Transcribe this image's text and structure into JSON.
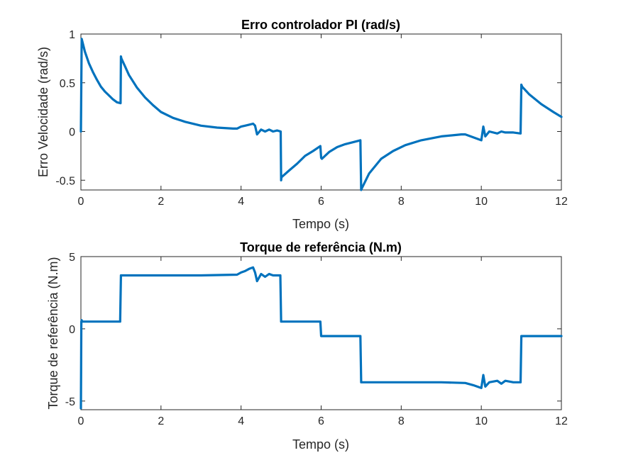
{
  "chart_data": [
    {
      "type": "line",
      "title": "Erro controlador PI (rad/s)",
      "xlabel": "Tempo (s)",
      "ylabel": "Erro Velocidade (rad/s)",
      "xlim": [
        0,
        12
      ],
      "ylim": [
        -0.6,
        1
      ],
      "xticks": [
        0,
        2,
        4,
        6,
        8,
        10,
        12
      ],
      "yticks": [
        -0.5,
        0,
        0.5,
        1
      ],
      "xtick_labels": [
        "0",
        "2",
        "4",
        "6",
        "8",
        "10",
        "12"
      ],
      "ytick_labels": [
        "-0.5",
        "0",
        "0.5",
        "1"
      ],
      "grid": false,
      "color": "#0072BD",
      "series": [
        {
          "x": [
            0,
            0.02,
            0.1,
            0.2,
            0.3,
            0.4,
            0.5,
            0.6,
            0.7,
            0.8,
            0.9,
            0.99,
            1.0,
            1.01,
            1.1,
            1.2,
            1.4,
            1.6,
            1.8,
            2.0,
            2.3,
            2.6,
            3.0,
            3.4,
            3.8,
            3.9,
            4.0,
            4.1,
            4.2,
            4.3,
            4.35,
            4.4,
            4.5,
            4.6,
            4.7,
            4.8,
            4.9,
            4.99,
            5.0,
            5.01,
            5.2,
            5.4,
            5.6,
            5.8,
            5.98,
            6.0,
            6.02,
            6.2,
            6.4,
            6.6,
            6.8,
            6.98,
            7.0,
            7.02,
            7.2,
            7.5,
            7.8,
            8.1,
            8.5,
            9.0,
            9.5,
            9.6,
            9.8,
            10.0,
            10.05,
            10.1,
            10.2,
            10.4,
            10.5,
            10.6,
            10.8,
            10.98,
            11.0,
            11.02,
            11.2,
            11.5,
            11.8,
            12.0
          ],
          "y": [
            0.0,
            0.95,
            0.82,
            0.7,
            0.61,
            0.53,
            0.46,
            0.41,
            0.37,
            0.33,
            0.3,
            0.29,
            0.77,
            0.75,
            0.67,
            0.58,
            0.45,
            0.35,
            0.27,
            0.2,
            0.14,
            0.1,
            0.06,
            0.04,
            0.03,
            0.03,
            0.05,
            0.06,
            0.07,
            0.08,
            0.06,
            -0.03,
            0.02,
            0.0,
            0.02,
            0.0,
            0.01,
            0.0,
            -0.5,
            -0.47,
            -0.4,
            -0.33,
            -0.25,
            -0.2,
            -0.15,
            -0.27,
            -0.28,
            -0.21,
            -0.16,
            -0.13,
            -0.11,
            -0.09,
            -0.6,
            -0.58,
            -0.43,
            -0.28,
            -0.2,
            -0.14,
            -0.09,
            -0.05,
            -0.03,
            -0.03,
            -0.06,
            -0.09,
            0.05,
            -0.05,
            0.0,
            -0.02,
            0.0,
            -0.01,
            -0.01,
            -0.02,
            0.48,
            0.46,
            0.38,
            0.28,
            0.2,
            0.15
          ]
        }
      ]
    },
    {
      "type": "line",
      "title": "Torque de referência (N.m)",
      "xlabel": "Tempo (s)",
      "ylabel": "Torque de referência (N.m)",
      "xlim": [
        0,
        12
      ],
      "ylim": [
        -5.6,
        5
      ],
      "xticks": [
        0,
        2,
        4,
        6,
        8,
        10,
        12
      ],
      "yticks": [
        -5,
        0,
        5
      ],
      "xtick_labels": [
        "0",
        "2",
        "4",
        "6",
        "8",
        "10",
        "12"
      ],
      "ytick_labels": [
        "-5",
        "0",
        "5"
      ],
      "grid": false,
      "color": "#0072BD",
      "series": [
        {
          "x": [
            0,
            0.01,
            0.02,
            0.03,
            0.5,
            0.98,
            1.0,
            1.02,
            2.0,
            3.0,
            3.9,
            4.0,
            4.1,
            4.2,
            4.3,
            4.35,
            4.4,
            4.5,
            4.6,
            4.7,
            4.8,
            4.9,
            4.98,
            5.0,
            5.02,
            5.5,
            5.98,
            6.0,
            6.02,
            6.5,
            6.98,
            7.0,
            7.02,
            8.0,
            9.0,
            9.6,
            9.8,
            10.0,
            10.05,
            10.1,
            10.2,
            10.4,
            10.5,
            10.6,
            10.8,
            10.98,
            11.0,
            11.02,
            11.5,
            12.0
          ],
          "y": [
            -5.5,
            0.5,
            0.6,
            0.5,
            0.5,
            0.5,
            3.7,
            3.7,
            3.7,
            3.7,
            3.75,
            3.9,
            4.0,
            4.15,
            4.25,
            3.9,
            3.3,
            3.8,
            3.6,
            3.8,
            3.7,
            3.7,
            3.7,
            0.5,
            0.5,
            0.5,
            0.5,
            -0.5,
            -0.5,
            -0.5,
            -0.5,
            -3.7,
            -3.7,
            -3.7,
            -3.7,
            -3.75,
            -3.9,
            -4.1,
            -3.2,
            -4.0,
            -3.7,
            -3.6,
            -3.8,
            -3.6,
            -3.7,
            -3.7,
            -0.5,
            -0.5,
            -0.5,
            -0.5
          ]
        }
      ]
    }
  ]
}
